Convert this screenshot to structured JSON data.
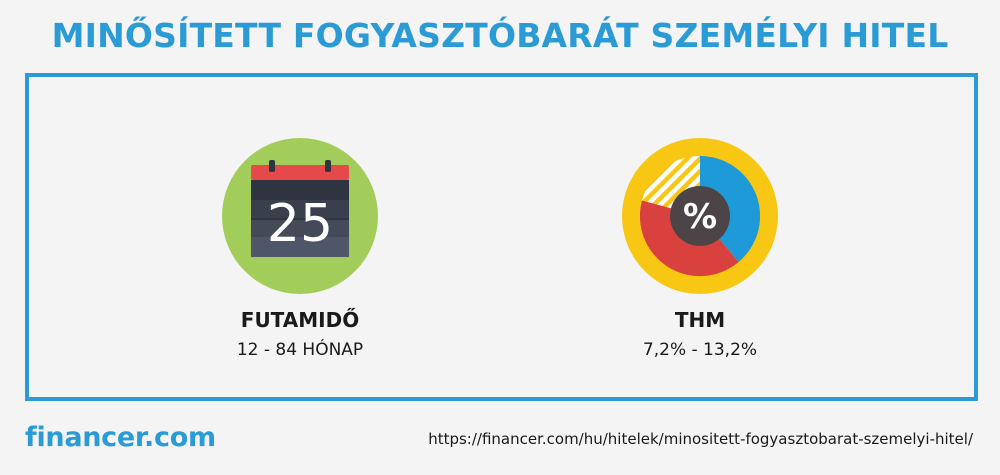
{
  "title": "MINŐSÍTETT FOGYASZTÓBARÁT SZEMÉLYI HITEL",
  "features": [
    {
      "icon": "calendar-icon",
      "icon_text": "25",
      "label": "FUTAMIDŐ",
      "value": "12 - 84 HÓNAP"
    },
    {
      "icon": "percent-donut-icon",
      "icon_text": "%",
      "label": "THM",
      "value": "7,2% - 13,2%"
    }
  ],
  "footer": {
    "logo": "financer.com",
    "url": "https://financer.com/hu/hitelek/minositett-fogyasztobarat-szemelyi-hitel/"
  },
  "colors": {
    "accent": "#2b9bd6",
    "calendar_bg": "#a3cd5a",
    "calendar_header": "#e5494a",
    "calendar_body": "#3a3f4d",
    "donut_ring": "#f8c713",
    "donut_blue": "#1e9ad8",
    "donut_red": "#d9413f",
    "donut_center": "#4d4447"
  }
}
